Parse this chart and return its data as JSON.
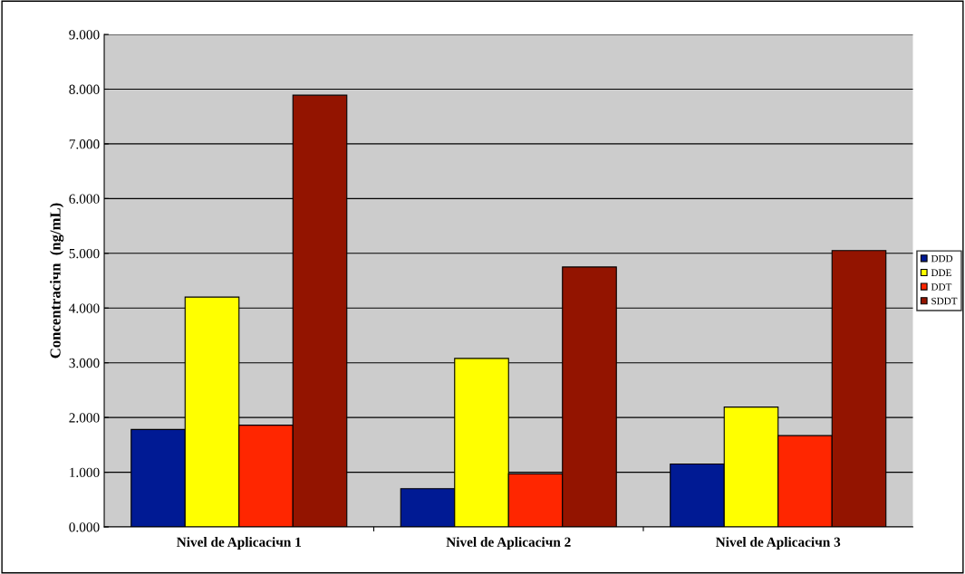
{
  "chart_data": {
    "type": "bar",
    "ylabel": "Concentraciчn  (ng/mL)",
    "categories": [
      "Nivel de Aplicaciчn 1",
      "Nivel de Aplicaciчn 2",
      "Nivel de Aplicaciчn 3"
    ],
    "series": [
      {
        "name": "DDD",
        "color": "#001a94",
        "values": [
          1.78,
          0.7,
          1.15
        ]
      },
      {
        "name": "DDE",
        "color": "#ffff00",
        "values": [
          4.2,
          3.08,
          2.19
        ]
      },
      {
        "name": "DDT",
        "color": "#ff2600",
        "values": [
          1.86,
          0.97,
          1.67
        ]
      },
      {
        "name": "SDDT",
        "color": "#931400",
        "values": [
          7.89,
          4.75,
          5.05
        ]
      }
    ],
    "ylim": [
      0,
      9
    ],
    "yticks": [
      {
        "value": 0,
        "label": "0.000"
      },
      {
        "value": 1,
        "label": "1.000"
      },
      {
        "value": 2,
        "label": "2.000"
      },
      {
        "value": 3,
        "label": "3.000"
      },
      {
        "value": 4,
        "label": "4.000"
      },
      {
        "value": 5,
        "label": "5.000"
      },
      {
        "value": 6,
        "label": "6.000"
      },
      {
        "value": 7,
        "label": "7.000"
      },
      {
        "value": 8,
        "label": "8.000"
      },
      {
        "value": 9,
        "label": "9.000"
      }
    ],
    "grid": "y",
    "legend": "right"
  }
}
